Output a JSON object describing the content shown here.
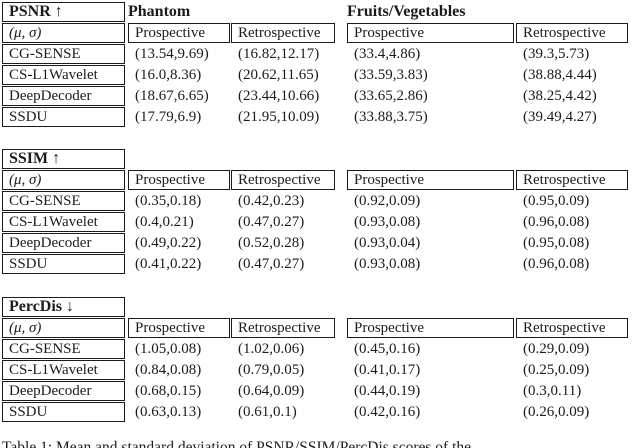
{
  "page": {
    "caption": "Table 1: Mean and standard deviation of PSNR/SSIM/PercDis scores of the",
    "colors": {
      "background": "#ffffff",
      "text": "#1b1b1b",
      "border": "#1b1b1b"
    }
  },
  "shared": {
    "row_header": "(μ, σ)",
    "group_labels": [
      "Phantom",
      "Fruits/Vegetables"
    ],
    "subheaders": [
      "Prospective",
      "Retrospective",
      "Prospective",
      "Retrospective"
    ]
  },
  "tables": [
    {
      "metric_label": "PSNR ↑",
      "show_groups": true,
      "rows": [
        {
          "label": "CG-SENSE",
          "values": [
            "(13.54,9.69)",
            "(16.82,12.17)",
            "(33.4,4.86)",
            "(39.3,5.73)"
          ]
        },
        {
          "label": "CS-L1Wavelet",
          "values": [
            "(16.0,8.36)",
            "(20.62,11.65)",
            "(33.59,3.83)",
            "(38.88,4.44)"
          ]
        },
        {
          "label": "DeepDecoder",
          "values": [
            "(18.67,6.65)",
            "(23.44,10.66)",
            "(33.65,2.86)",
            "(38.25,4.42)"
          ]
        },
        {
          "label": "SSDU",
          "values": [
            "(17.79,6.9)",
            "(21.95,10.09)",
            "(33.88,3.75)",
            "(39.49,4.27)"
          ]
        }
      ]
    },
    {
      "metric_label": "SSIM ↑",
      "show_groups": false,
      "rows": [
        {
          "label": "CG-SENSE",
          "values": [
            "(0.35,0.18)",
            "(0.42,0.23)",
            "(0.92,0.09)",
            "(0.95,0.09)"
          ]
        },
        {
          "label": "CS-L1Wavelet",
          "values": [
            "(0.4,0.21)",
            "(0.47,0.27)",
            "(0.93,0.08)",
            "(0.96,0.08)"
          ]
        },
        {
          "label": "DeepDecoder",
          "values": [
            "(0.49,0.22)",
            "(0.52,0.28)",
            "(0.93,0.04)",
            "(0.95,0.08)"
          ]
        },
        {
          "label": "SSDU",
          "values": [
            "(0.41,0.22)",
            "(0.47,0.27)",
            "(0.93,0.08)",
            "(0.96,0.08)"
          ]
        }
      ]
    },
    {
      "metric_label": "PercDis ↓",
      "show_groups": false,
      "rows": [
        {
          "label": "CG-SENSE",
          "values": [
            "(1.05,0.08)",
            "(1.02,0.06)",
            "(0.45,0.16)",
            "(0.29,0.09)"
          ]
        },
        {
          "label": "CS-L1Wavelet",
          "values": [
            "(0.84,0.08)",
            "(0.79,0.05)",
            "(0.41,0.17)",
            "(0.25,0.09)"
          ]
        },
        {
          "label": "DeepDecoder",
          "values": [
            "(0.68,0.15)",
            "(0.64,0.09)",
            "(0.44,0.19)",
            "(0.3,0.11)"
          ]
        },
        {
          "label": "SSDU",
          "values": [
            "(0.63,0.13)",
            "(0.61,0.1)",
            "(0.42,0.16)",
            "(0.26,0.09)"
          ]
        }
      ]
    }
  ]
}
